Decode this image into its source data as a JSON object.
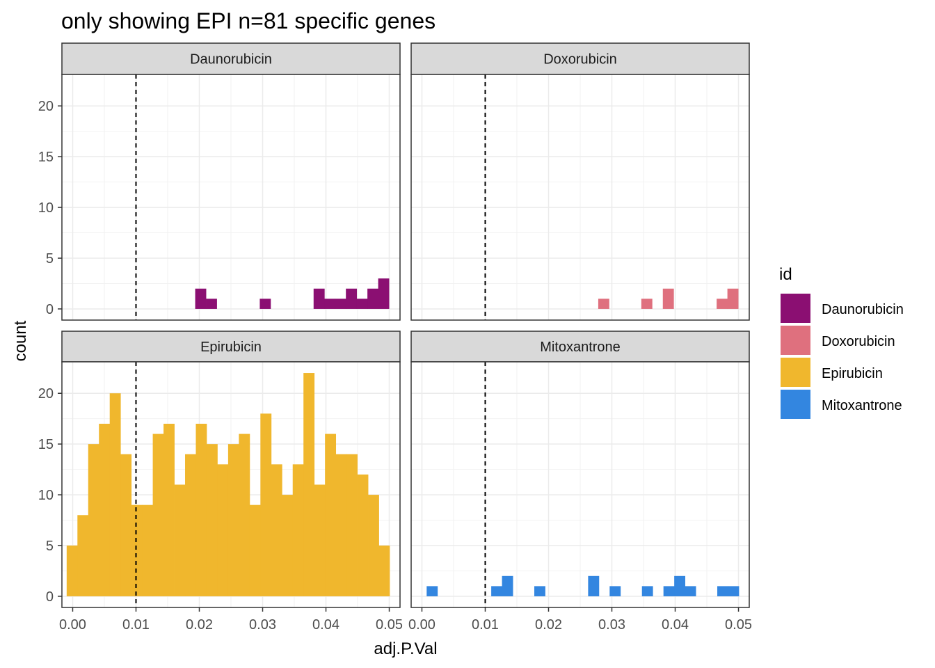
{
  "chart_data": {
    "type": "bar",
    "title": "only showing EPI n=81 specific genes",
    "xlabel": "adj.P.Val",
    "ylabel": "count",
    "xlim": [
      -0.0017,
      0.0517
    ],
    "ylim": [
      -1.1,
      23.1
    ],
    "x_ticks": [
      0,
      0.01,
      0.02,
      0.03,
      0.04,
      0.05
    ],
    "x_tick_labels": [
      "0.00",
      "0.01",
      "0.02",
      "0.03",
      "0.04",
      "0.05"
    ],
    "y_ticks": [
      0,
      5,
      10,
      15,
      20
    ],
    "y_tick_labels": [
      "0",
      "5",
      "10",
      "15",
      "20"
    ],
    "bin_width": 0.0017,
    "vline": 0.01,
    "grid": true,
    "legend": {
      "title": "id",
      "position": "right",
      "items": [
        {
          "label": "Daunorubicin",
          "color": "#8B0F72"
        },
        {
          "label": "Doxorubicin",
          "color": "#DF707E"
        },
        {
          "label": "Epirubicin",
          "color": "#F0B72D"
        },
        {
          "label": "Mitoxantrone",
          "color": "#3386E0"
        }
      ]
    },
    "panels": [
      {
        "name": "Daunorubicin",
        "color": "#8B0F72",
        "bins": [
          {
            "x": 0.0202,
            "count": 2
          },
          {
            "x": 0.0219,
            "count": 1
          },
          {
            "x": 0.0304,
            "count": 1
          },
          {
            "x": 0.0389,
            "count": 2
          },
          {
            "x": 0.0406,
            "count": 1
          },
          {
            "x": 0.0423,
            "count": 1
          },
          {
            "x": 0.044,
            "count": 2
          },
          {
            "x": 0.0457,
            "count": 1
          },
          {
            "x": 0.0474,
            "count": 2
          },
          {
            "x": 0.0491,
            "count": 3
          }
        ]
      },
      {
        "name": "Doxorubicin",
        "color": "#DF707E",
        "bins": [
          {
            "x": 0.0287,
            "count": 1
          },
          {
            "x": 0.0355,
            "count": 1
          },
          {
            "x": 0.0389,
            "count": 2
          },
          {
            "x": 0.0474,
            "count": 1
          },
          {
            "x": 0.0491,
            "count": 2
          }
        ]
      },
      {
        "name": "Epirubicin",
        "color": "#F0B72D",
        "bins": [
          {
            "x": -0.0001,
            "count": 5
          },
          {
            "x": 0.0016,
            "count": 8
          },
          {
            "x": 0.0033,
            "count": 15
          },
          {
            "x": 0.005,
            "count": 17
          },
          {
            "x": 0.0067,
            "count": 20
          },
          {
            "x": 0.0084,
            "count": 14
          },
          {
            "x": 0.0101,
            "count": 9
          },
          {
            "x": 0.0118,
            "count": 9
          },
          {
            "x": 0.0135,
            "count": 16
          },
          {
            "x": 0.0152,
            "count": 17
          },
          {
            "x": 0.0169,
            "count": 11
          },
          {
            "x": 0.0186,
            "count": 14
          },
          {
            "x": 0.0203,
            "count": 17
          },
          {
            "x": 0.022,
            "count": 15
          },
          {
            "x": 0.0237,
            "count": 13
          },
          {
            "x": 0.0254,
            "count": 15
          },
          {
            "x": 0.0271,
            "count": 16
          },
          {
            "x": 0.0288,
            "count": 9
          },
          {
            "x": 0.0305,
            "count": 18
          },
          {
            "x": 0.0322,
            "count": 13
          },
          {
            "x": 0.0339,
            "count": 10
          },
          {
            "x": 0.0356,
            "count": 13
          },
          {
            "x": 0.0373,
            "count": 22
          },
          {
            "x": 0.039,
            "count": 11
          },
          {
            "x": 0.0407,
            "count": 16
          },
          {
            "x": 0.0424,
            "count": 14
          },
          {
            "x": 0.0441,
            "count": 14
          },
          {
            "x": 0.0458,
            "count": 12
          },
          {
            "x": 0.0475,
            "count": 10
          },
          {
            "x": 0.0492,
            "count": 5
          }
        ]
      },
      {
        "name": "Mitoxantrone",
        "color": "#3386E0",
        "bins": [
          {
            "x": 0.0016,
            "count": 1
          },
          {
            "x": 0.0118,
            "count": 1
          },
          {
            "x": 0.0135,
            "count": 2
          },
          {
            "x": 0.0186,
            "count": 1
          },
          {
            "x": 0.0271,
            "count": 2
          },
          {
            "x": 0.0305,
            "count": 1
          },
          {
            "x": 0.0356,
            "count": 1
          },
          {
            "x": 0.039,
            "count": 1
          },
          {
            "x": 0.0407,
            "count": 2
          },
          {
            "x": 0.0424,
            "count": 1
          },
          {
            "x": 0.0475,
            "count": 1
          },
          {
            "x": 0.0492,
            "count": 1
          }
        ]
      }
    ]
  }
}
